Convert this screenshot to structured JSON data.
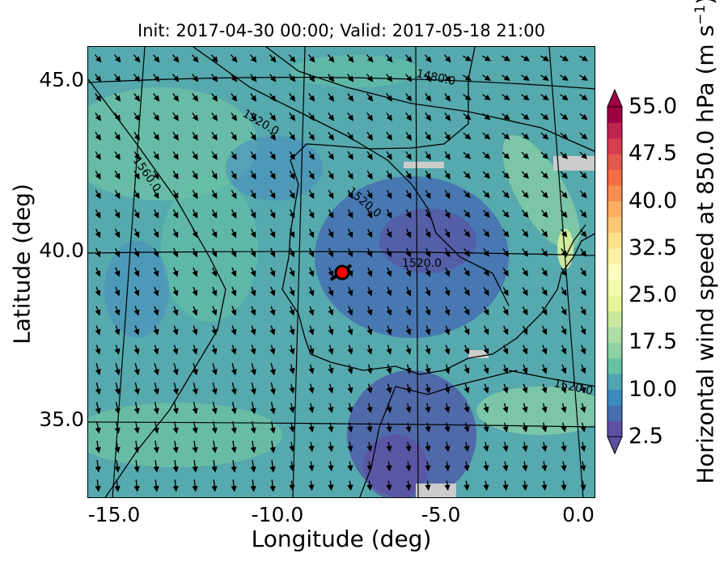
{
  "title": "Init: 2017-04-30 00:00; Valid: 2017-05-18 21:00",
  "xlabel": "Longitude (deg)",
  "ylabel": "Latitude (deg)",
  "x_ticks": [
    "-15.0",
    "-10.0",
    "-5.0",
    "0.0"
  ],
  "y_ticks": [
    "45.0",
    "40.0",
    "35.0"
  ],
  "contour_labels": [
    "1480.0",
    "1520.0",
    "1560.0",
    "1520.0",
    "1520.0",
    "1520.0"
  ],
  "colorbar": {
    "label_main": "Horizontal wind speed at 850.0 hPa (m s",
    "label_sup": "−1",
    "label_end": ")",
    "ticks": [
      "55.0",
      "47.5",
      "40.0",
      "32.5",
      "25.0",
      "17.5",
      "10.0",
      "2.5"
    ],
    "min": 2.5,
    "max": 55.0,
    "step": 2.5,
    "colors": [
      "#5e4fa2",
      "#4470b1",
      "#3b8bc0",
      "#4fa5b1",
      "#66c2a5",
      "#8dd2a4",
      "#abdda4",
      "#cbe99d",
      "#e6f598",
      "#f2faab",
      "#ffffbf",
      "#fff0a6",
      "#fee08b",
      "#fdc675",
      "#fdae61",
      "#f98e52",
      "#f46d43",
      "#e45a4a",
      "#d53e4f",
      "#be254f",
      "#9e0142"
    ]
  },
  "marker_color": "#ff0000"
}
